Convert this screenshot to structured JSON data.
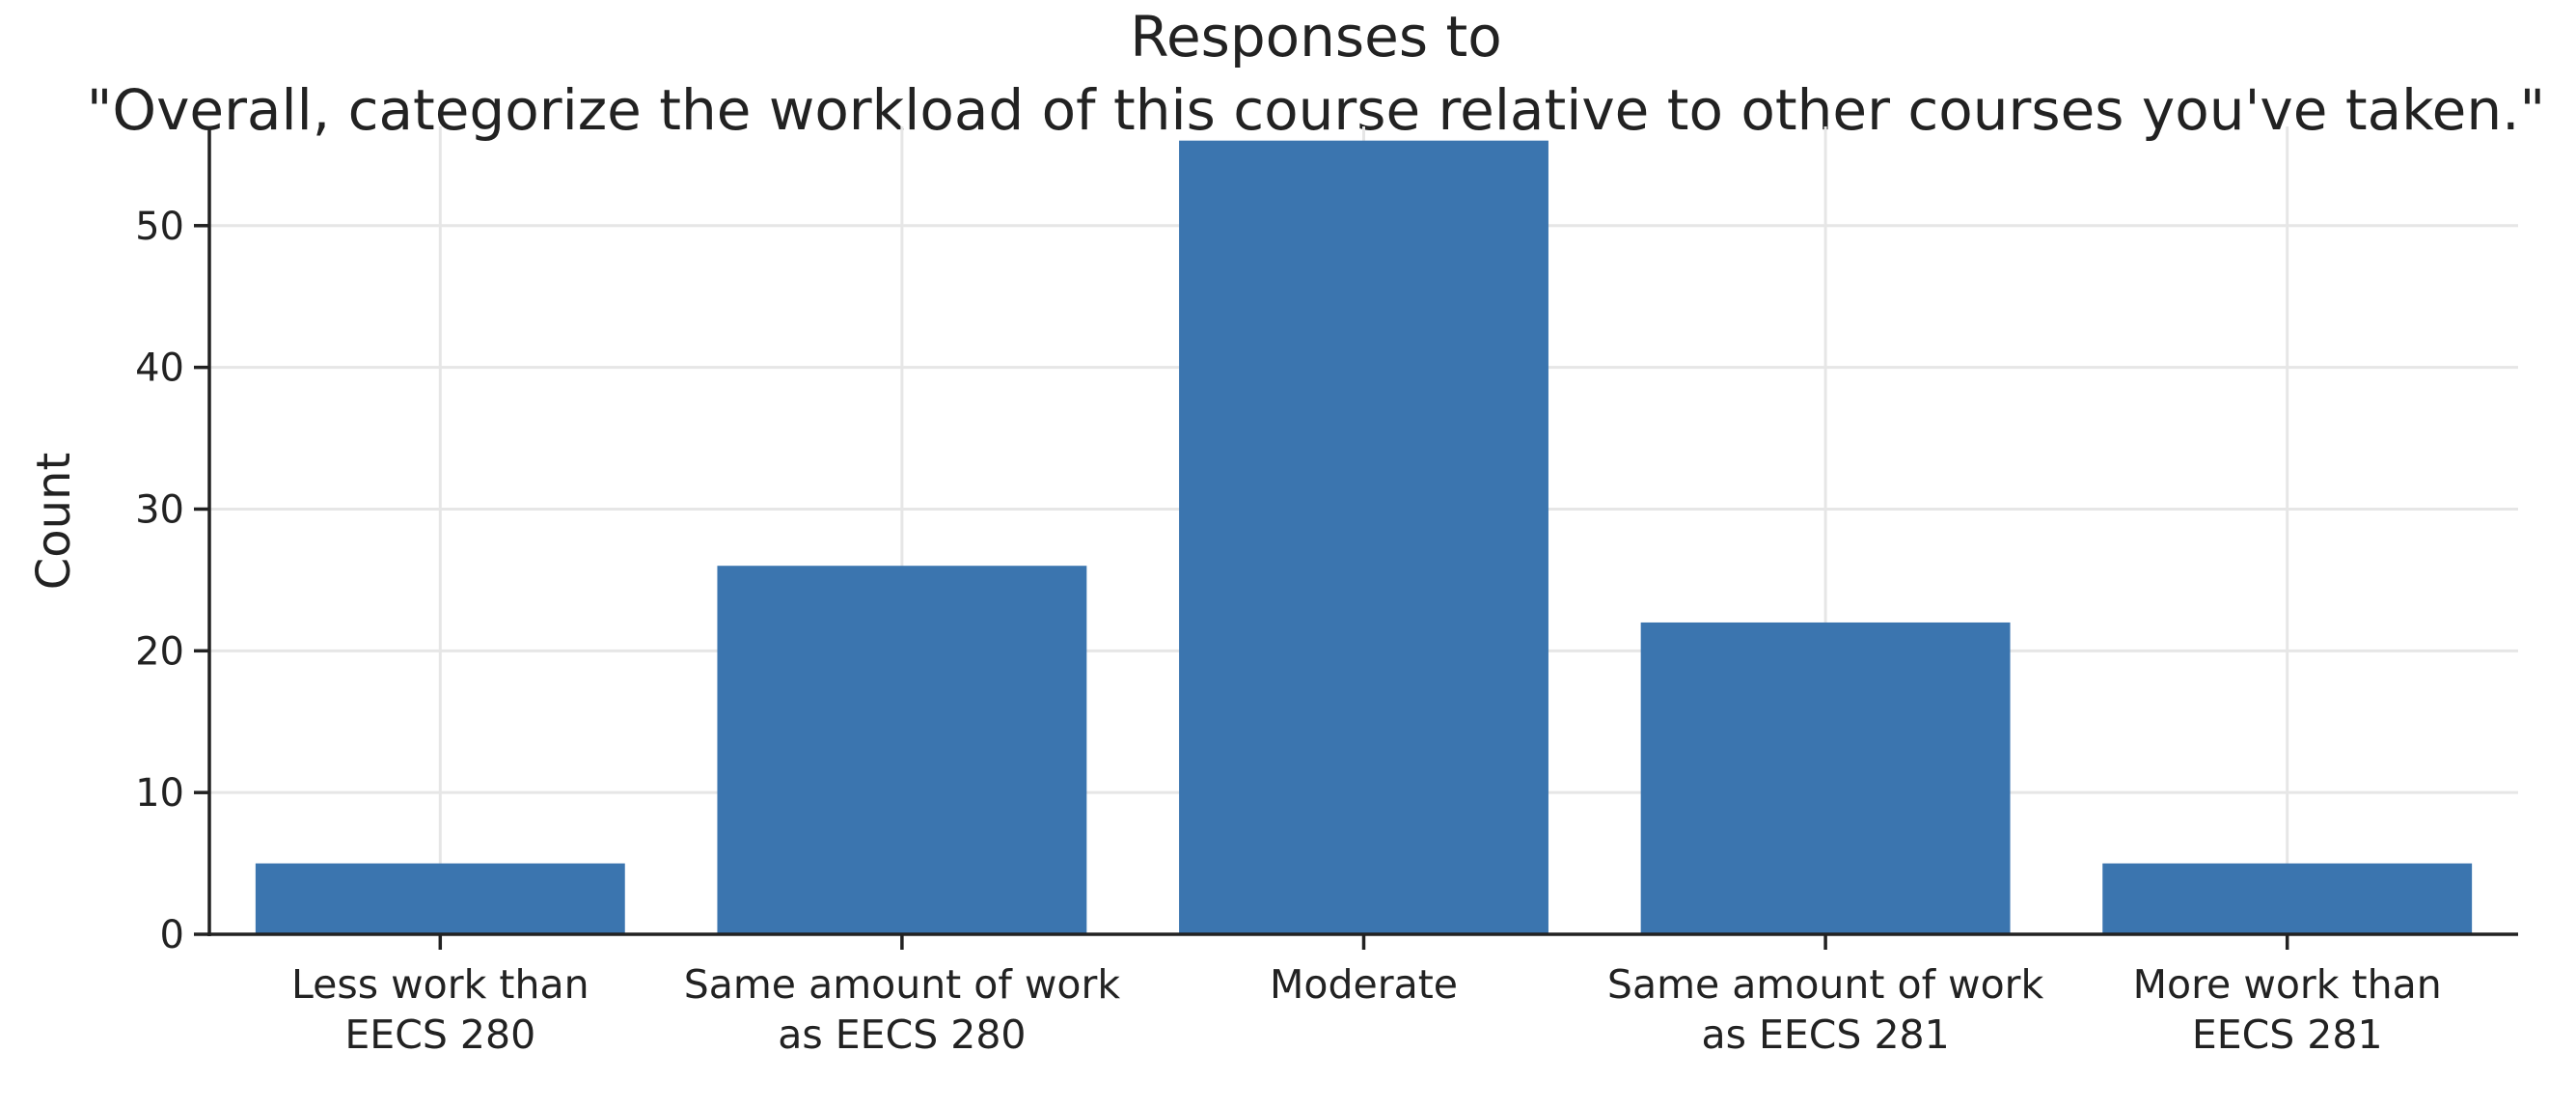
{
  "chart_data": {
    "type": "bar",
    "title_lines": [
      "Responses to",
      "\"Overall, categorize the workload of this course relative to other courses you've taken.\""
    ],
    "xlabel": "",
    "ylabel": "Count",
    "categories": [
      [
        "Less work than",
        "EECS 280"
      ],
      [
        "Same amount of work",
        "as EECS 280"
      ],
      [
        "Moderate"
      ],
      [
        "Same amount of work",
        "as EECS 281"
      ],
      [
        "More work than",
        "EECS 281"
      ]
    ],
    "values": [
      5,
      26,
      56,
      22,
      5
    ],
    "ylim": [
      0,
      57
    ],
    "yticks": [
      0,
      10,
      20,
      30,
      40,
      50
    ],
    "grid": true,
    "bar_color": "#3b75af"
  }
}
